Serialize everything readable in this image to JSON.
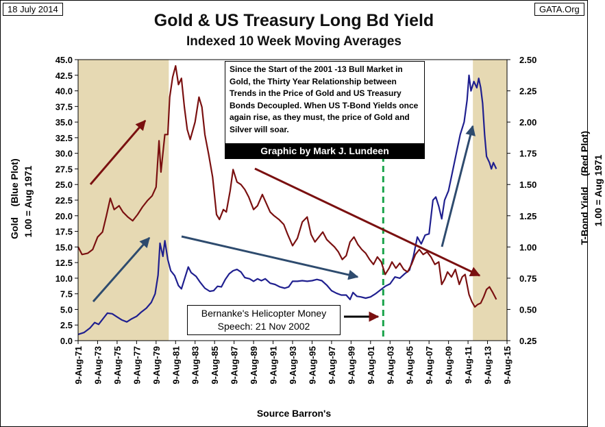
{
  "header": {
    "date_label": "18 July 2014",
    "source_site": "GATA.Org",
    "title": "Gold & US Treasury Long Bd Yield",
    "subtitle": "Indexed 10 Week Moving Averages",
    "footer": "Source Barron's"
  },
  "annotations": {
    "note": "Since the Start of the 2001  -13 Bull Market in Gold, the Thirty Year Relationship between Trends in the Price of Gold and US Treasury Bonds Decoupled.  When US T-Bond Yields once again rise, as they must, the price of Gold and Silver will soar.",
    "credit": "Graphic by Mark J. Lundeen",
    "event": "Bernanke's Helicopter Money Speech: 21 Nov 2002"
  },
  "colors": {
    "gold_series": "#1f1f8f",
    "bond_series": "#7a1010",
    "shade": "#e6d9b3",
    "event_line": "#1aa34a",
    "arrow_red": "#7a1010",
    "arrow_blue": "#2e4b6e"
  },
  "chart_data": {
    "type": "line",
    "title": "Gold & US Treasury Long Bd Yield",
    "subtitle": "Indexed 10 Week Moving Averages",
    "xlabel": "Source Barron's",
    "ylabel_left": "Gold    (Blue Plot)\n1.00 = Aug 1971",
    "ylabel_right": "T-Bond Yield    (Red Plot)\n1.00 = Aug 1971",
    "x_ticks": [
      "9-Aug-71",
      "9-Aug-73",
      "9-Aug-75",
      "9-Aug-77",
      "9-Aug-79",
      "9-Aug-81",
      "9-Aug-83",
      "9-Aug-85",
      "9-Aug-87",
      "9-Aug-89",
      "9-Aug-91",
      "9-Aug-93",
      "9-Aug-95",
      "9-Aug-97",
      "9-Aug-99",
      "9-Aug-01",
      "9-Aug-03",
      "9-Aug-05",
      "9-Aug-07",
      "9-Aug-09",
      "9-Aug-11",
      "9-Aug-13",
      "9-Aug-15"
    ],
    "x_range": [
      1971.6,
      2015.6
    ],
    "ylim_left": [
      0,
      45
    ],
    "ylim_right": [
      0.25,
      2.5
    ],
    "y_ticks_left": [
      "0.0",
      "2.5",
      "5.0",
      "7.5",
      "10.0",
      "12.5",
      "15.0",
      "17.5",
      "20.0",
      "22.5",
      "25.0",
      "27.5",
      "30.0",
      "32.5",
      "35.0",
      "37.5",
      "40.0",
      "42.5",
      "45.0"
    ],
    "y_ticks_right": [
      "0.25",
      "0.50",
      "0.75",
      "1.00",
      "1.25",
      "1.50",
      "1.75",
      "2.00",
      "2.25",
      "2.50"
    ],
    "shaded_periods": [
      [
        1971.6,
        1980.9
      ],
      [
        2012.1,
        2015.6
      ]
    ],
    "event_year": 2002.9,
    "series": [
      {
        "name": "Gold",
        "axis": "left",
        "points": [
          [
            1971.6,
            1.0
          ],
          [
            1972.2,
            1.3
          ],
          [
            1972.8,
            2.0
          ],
          [
            1973.3,
            2.9
          ],
          [
            1973.7,
            2.6
          ],
          [
            1974.2,
            3.6
          ],
          [
            1974.6,
            4.4
          ],
          [
            1975.1,
            4.3
          ],
          [
            1975.6,
            3.8
          ],
          [
            1976.1,
            3.3
          ],
          [
            1976.6,
            3.0
          ],
          [
            1977.1,
            3.5
          ],
          [
            1977.6,
            3.9
          ],
          [
            1978.1,
            4.6
          ],
          [
            1978.6,
            5.2
          ],
          [
            1979.1,
            6.1
          ],
          [
            1979.5,
            7.5
          ],
          [
            1979.8,
            10.5
          ],
          [
            1980.0,
            15.6
          ],
          [
            1980.3,
            13.5
          ],
          [
            1980.5,
            16.0
          ],
          [
            1980.8,
            13.0
          ],
          [
            1981.1,
            11.2
          ],
          [
            1981.5,
            10.4
          ],
          [
            1981.9,
            8.8
          ],
          [
            1982.2,
            8.3
          ],
          [
            1982.5,
            9.8
          ],
          [
            1982.9,
            11.8
          ],
          [
            1983.2,
            10.9
          ],
          [
            1983.7,
            10.3
          ],
          [
            1984.1,
            9.4
          ],
          [
            1984.6,
            8.4
          ],
          [
            1985.1,
            7.9
          ],
          [
            1985.5,
            8.0
          ],
          [
            1985.9,
            8.7
          ],
          [
            1986.3,
            8.6
          ],
          [
            1986.7,
            9.8
          ],
          [
            1987.1,
            10.7
          ],
          [
            1987.5,
            11.2
          ],
          [
            1987.9,
            11.4
          ],
          [
            1988.3,
            11.0
          ],
          [
            1988.7,
            10.1
          ],
          [
            1989.2,
            9.9
          ],
          [
            1989.6,
            9.5
          ],
          [
            1990.0,
            9.9
          ],
          [
            1990.4,
            9.6
          ],
          [
            1990.8,
            9.9
          ],
          [
            1991.3,
            9.2
          ],
          [
            1991.8,
            9.0
          ],
          [
            1992.3,
            8.6
          ],
          [
            1992.8,
            8.4
          ],
          [
            1993.2,
            8.6
          ],
          [
            1993.6,
            9.5
          ],
          [
            1994.1,
            9.5
          ],
          [
            1994.6,
            9.6
          ],
          [
            1995.1,
            9.5
          ],
          [
            1995.6,
            9.6
          ],
          [
            1996.1,
            9.8
          ],
          [
            1996.6,
            9.6
          ],
          [
            1997.1,
            8.9
          ],
          [
            1997.6,
            8.0
          ],
          [
            1998.1,
            7.6
          ],
          [
            1998.6,
            7.3
          ],
          [
            1999.1,
            7.3
          ],
          [
            1999.5,
            6.6
          ],
          [
            1999.8,
            7.7
          ],
          [
            2000.2,
            7.1
          ],
          [
            2000.6,
            7.0
          ],
          [
            2001.1,
            6.8
          ],
          [
            2001.6,
            7.0
          ],
          [
            2002.1,
            7.5
          ],
          [
            2002.6,
            8.1
          ],
          [
            2003.1,
            8.7
          ],
          [
            2003.6,
            9.1
          ],
          [
            2004.1,
            10.2
          ],
          [
            2004.6,
            10.0
          ],
          [
            2005.1,
            10.7
          ],
          [
            2005.6,
            11.3
          ],
          [
            2006.0,
            13.5
          ],
          [
            2006.4,
            16.6
          ],
          [
            2006.8,
            15.5
          ],
          [
            2007.2,
            16.9
          ],
          [
            2007.6,
            17.1
          ],
          [
            2008.0,
            22.5
          ],
          [
            2008.3,
            23.0
          ],
          [
            2008.6,
            21.5
          ],
          [
            2008.9,
            19.5
          ],
          [
            2009.2,
            22.5
          ],
          [
            2009.6,
            24.0
          ],
          [
            2010.0,
            27.0
          ],
          [
            2010.4,
            30.0
          ],
          [
            2010.8,
            33.0
          ],
          [
            2011.2,
            35.0
          ],
          [
            2011.5,
            38.5
          ],
          [
            2011.7,
            42.5
          ],
          [
            2011.9,
            40.0
          ],
          [
            2012.2,
            41.5
          ],
          [
            2012.5,
            40.5
          ],
          [
            2012.7,
            42.0
          ],
          [
            2012.9,
            40.5
          ],
          [
            2013.1,
            38.0
          ],
          [
            2013.3,
            33.0
          ],
          [
            2013.5,
            29.5
          ],
          [
            2013.8,
            28.5
          ],
          [
            2014.0,
            27.5
          ],
          [
            2014.2,
            28.5
          ],
          [
            2014.5,
            27.5
          ]
        ]
      },
      {
        "name": "T-Bond Yield",
        "axis": "right",
        "points": [
          [
            1971.6,
            1.0
          ],
          [
            1972.0,
            0.94
          ],
          [
            1972.6,
            0.95
          ],
          [
            1973.1,
            0.98
          ],
          [
            1973.6,
            1.08
          ],
          [
            1974.1,
            1.12
          ],
          [
            1974.5,
            1.25
          ],
          [
            1974.9,
            1.39
          ],
          [
            1975.3,
            1.3
          ],
          [
            1975.8,
            1.33
          ],
          [
            1976.2,
            1.28
          ],
          [
            1976.7,
            1.24
          ],
          [
            1977.2,
            1.21
          ],
          [
            1977.7,
            1.26
          ],
          [
            1978.2,
            1.32
          ],
          [
            1978.7,
            1.37
          ],
          [
            1979.2,
            1.41
          ],
          [
            1979.6,
            1.48
          ],
          [
            1979.9,
            1.85
          ],
          [
            1980.1,
            1.6
          ],
          [
            1980.5,
            1.9
          ],
          [
            1980.8,
            1.9
          ],
          [
            1981.0,
            2.2
          ],
          [
            1981.3,
            2.36
          ],
          [
            1981.6,
            2.45
          ],
          [
            1981.9,
            2.3
          ],
          [
            1982.2,
            2.35
          ],
          [
            1982.5,
            2.12
          ],
          [
            1982.8,
            1.94
          ],
          [
            1983.1,
            1.86
          ],
          [
            1983.6,
            2.0
          ],
          [
            1984.0,
            2.2
          ],
          [
            1984.3,
            2.12
          ],
          [
            1984.6,
            1.9
          ],
          [
            1985.0,
            1.74
          ],
          [
            1985.4,
            1.56
          ],
          [
            1985.8,
            1.26
          ],
          [
            1986.1,
            1.22
          ],
          [
            1986.5,
            1.3
          ],
          [
            1986.8,
            1.28
          ],
          [
            1987.2,
            1.45
          ],
          [
            1987.5,
            1.62
          ],
          [
            1987.9,
            1.52
          ],
          [
            1988.3,
            1.5
          ],
          [
            1988.7,
            1.46
          ],
          [
            1989.1,
            1.4
          ],
          [
            1989.6,
            1.3
          ],
          [
            1990.0,
            1.33
          ],
          [
            1990.5,
            1.42
          ],
          [
            1990.9,
            1.35
          ],
          [
            1991.3,
            1.28
          ],
          [
            1991.7,
            1.25
          ],
          [
            1992.2,
            1.22
          ],
          [
            1992.7,
            1.18
          ],
          [
            1993.1,
            1.1
          ],
          [
            1993.6,
            1.01
          ],
          [
            1994.1,
            1.07
          ],
          [
            1994.6,
            1.2
          ],
          [
            1995.1,
            1.24
          ],
          [
            1995.5,
            1.1
          ],
          [
            1995.9,
            1.04
          ],
          [
            1996.3,
            1.08
          ],
          [
            1996.7,
            1.12
          ],
          [
            1997.1,
            1.06
          ],
          [
            1997.5,
            1.03
          ],
          [
            1997.9,
            1.0
          ],
          [
            1998.3,
            0.96
          ],
          [
            1998.7,
            0.9
          ],
          [
            1999.1,
            0.93
          ],
          [
            1999.5,
            1.04
          ],
          [
            1999.9,
            1.08
          ],
          [
            2000.3,
            1.02
          ],
          [
            2000.7,
            0.98
          ],
          [
            2001.1,
            0.95
          ],
          [
            2001.5,
            0.9
          ],
          [
            2001.9,
            0.86
          ],
          [
            2002.3,
            0.92
          ],
          [
            2002.7,
            0.88
          ],
          [
            2003.1,
            0.78
          ],
          [
            2003.5,
            0.83
          ],
          [
            2003.8,
            0.88
          ],
          [
            2004.2,
            0.83
          ],
          [
            2004.6,
            0.87
          ],
          [
            2005.0,
            0.82
          ],
          [
            2005.4,
            0.8
          ],
          [
            2005.8,
            0.86
          ],
          [
            2006.2,
            0.94
          ],
          [
            2006.6,
            0.98
          ],
          [
            2007.0,
            0.94
          ],
          [
            2007.4,
            0.96
          ],
          [
            2007.8,
            0.92
          ],
          [
            2008.2,
            0.86
          ],
          [
            2008.6,
            0.88
          ],
          [
            2008.9,
            0.7
          ],
          [
            2009.2,
            0.74
          ],
          [
            2009.5,
            0.8
          ],
          [
            2009.9,
            0.76
          ],
          [
            2010.3,
            0.82
          ],
          [
            2010.7,
            0.7
          ],
          [
            2011.0,
            0.76
          ],
          [
            2011.3,
            0.78
          ],
          [
            2011.7,
            0.62
          ],
          [
            2012.0,
            0.56
          ],
          [
            2012.3,
            0.52
          ],
          [
            2012.6,
            0.54
          ],
          [
            2012.9,
            0.55
          ],
          [
            2013.2,
            0.6
          ],
          [
            2013.5,
            0.66
          ],
          [
            2013.8,
            0.68
          ],
          [
            2014.1,
            0.64
          ],
          [
            2014.5,
            0.58
          ]
        ]
      }
    ]
  }
}
